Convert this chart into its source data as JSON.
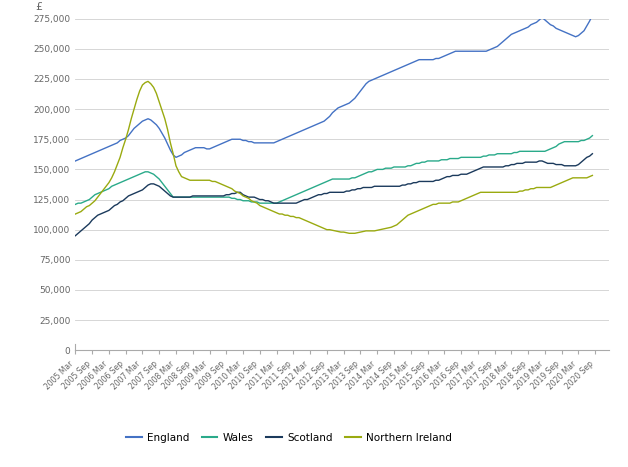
{
  "bg_color": "#ffffff",
  "grid_color": "#d0d0d0",
  "line_colors": {
    "England": "#4472c4",
    "Wales": "#2aaa8a",
    "Scotland": "#1b3a5c",
    "Northern Ireland": "#9aaa10"
  },
  "legend_labels": [
    "England",
    "Wales",
    "Scotland",
    "Northern Ireland"
  ],
  "ylim": [
    0,
    275000
  ],
  "yticks": [
    0,
    25000,
    50000,
    75000,
    100000,
    125000,
    150000,
    175000,
    200000,
    225000,
    250000,
    275000
  ],
  "x_tick_positions": [
    0,
    6,
    12,
    18,
    24,
    30,
    36,
    42,
    48,
    54,
    60,
    66,
    72,
    78,
    84,
    90,
    96,
    102,
    108,
    114,
    120,
    126,
    132,
    138,
    144,
    150,
    156,
    162,
    168,
    174,
    180,
    186
  ],
  "x_tick_labels": [
    "2005 Mar",
    "2005 Sep",
    "2006 Mar",
    "2006 Sep",
    "2007 Mar",
    "2007 Sep",
    "2008 Mar",
    "2008 Sep",
    "2009 Mar",
    "2009 Sep",
    "2010 Mar",
    "2010 Sep",
    "2011 Mar",
    "2011 Sep",
    "2012 Mar",
    "2012 Sep",
    "2013 Mar",
    "2013 Sep",
    "2014 Mar",
    "2014 Sep",
    "2015 Mar",
    "2015 Sep",
    "2016 Mar",
    "2016 Sep",
    "2017 Mar",
    "2017 Sep",
    "2018 Mar",
    "2018 Sep",
    "2019 Mar",
    "2019 Sep",
    "2020 Mar",
    "2020 Sep"
  ],
  "england_monthly": [
    157000,
    158000,
    159000,
    160000,
    161000,
    162000,
    163000,
    164000,
    165000,
    166000,
    167000,
    168000,
    169000,
    170000,
    171000,
    172000,
    174000,
    175000,
    176000,
    178000,
    181000,
    184000,
    186000,
    188000,
    190000,
    191000,
    192000,
    191000,
    189000,
    187000,
    184000,
    180000,
    176000,
    171000,
    166000,
    162000,
    160000,
    161000,
    162000,
    164000,
    165000,
    166000,
    167000,
    168000,
    168000,
    168000,
    168000,
    167000,
    167000,
    168000,
    169000,
    170000,
    171000,
    172000,
    173000,
    174000,
    175000,
    175000,
    175000,
    175000,
    174000,
    174000,
    173000,
    173000,
    172000,
    172000,
    172000,
    172000,
    172000,
    172000,
    172000,
    172000,
    173000,
    174000,
    175000,
    176000,
    177000,
    178000,
    179000,
    180000,
    181000,
    182000,
    183000,
    184000,
    185000,
    186000,
    187000,
    188000,
    189000,
    190000,
    192000,
    194000,
    197000,
    199000,
    201000,
    202000,
    203000,
    204000,
    205000,
    207000,
    209000,
    212000,
    215000,
    218000,
    221000,
    223000,
    224000,
    225000,
    226000,
    227000,
    228000,
    229000,
    230000,
    231000,
    232000,
    233000,
    234000,
    235000,
    236000,
    237000,
    238000,
    239000,
    240000,
    241000,
    241000,
    241000,
    241000,
    241000,
    241000,
    242000,
    242000,
    243000,
    244000,
    245000,
    246000,
    247000,
    248000,
    248000,
    248000,
    248000,
    248000,
    248000,
    248000,
    248000,
    248000,
    248000,
    248000,
    248000,
    249000,
    250000,
    251000,
    252000,
    254000,
    256000,
    258000,
    260000,
    262000,
    263000,
    264000,
    265000,
    266000,
    267000,
    268000,
    270000,
    271000,
    272000,
    274000,
    276000,
    274000,
    272000,
    270000,
    269000,
    267000,
    266000,
    265000,
    264000,
    263000,
    262000,
    261000,
    260000,
    261000,
    263000,
    265000,
    269000,
    273000,
    278000
  ],
  "wales_monthly": [
    121000,
    122000,
    122000,
    123000,
    124000,
    125000,
    127000,
    129000,
    130000,
    131000,
    132000,
    133000,
    134000,
    136000,
    137000,
    138000,
    139000,
    140000,
    141000,
    142000,
    143000,
    144000,
    145000,
    146000,
    147000,
    148000,
    148000,
    147000,
    146000,
    144000,
    142000,
    139000,
    136000,
    133000,
    130000,
    127000,
    127000,
    127000,
    127000,
    127000,
    127000,
    127000,
    127000,
    127000,
    127000,
    127000,
    127000,
    127000,
    127000,
    127000,
    127000,
    127000,
    127000,
    127000,
    127000,
    127000,
    126000,
    126000,
    125000,
    125000,
    124000,
    124000,
    124000,
    123000,
    123000,
    123000,
    122000,
    122000,
    122000,
    122000,
    122000,
    122000,
    122000,
    123000,
    124000,
    125000,
    126000,
    127000,
    128000,
    129000,
    130000,
    131000,
    132000,
    133000,
    134000,
    135000,
    136000,
    137000,
    138000,
    139000,
    140000,
    141000,
    142000,
    142000,
    142000,
    142000,
    142000,
    142000,
    142000,
    143000,
    143000,
    144000,
    145000,
    146000,
    147000,
    148000,
    148000,
    149000,
    150000,
    150000,
    150000,
    151000,
    151000,
    151000,
    152000,
    152000,
    152000,
    152000,
    152000,
    153000,
    153000,
    154000,
    155000,
    155000,
    156000,
    156000,
    157000,
    157000,
    157000,
    157000,
    157000,
    158000,
    158000,
    158000,
    159000,
    159000,
    159000,
    159000,
    160000,
    160000,
    160000,
    160000,
    160000,
    160000,
    160000,
    160000,
    161000,
    161000,
    162000,
    162000,
    162000,
    163000,
    163000,
    163000,
    163000,
    163000,
    163000,
    164000,
    164000,
    165000,
    165000,
    165000,
    165000,
    165000,
    165000,
    165000,
    165000,
    165000,
    165000,
    166000,
    167000,
    168000,
    169000,
    171000,
    172000,
    173000,
    173000,
    173000,
    173000,
    173000,
    173000,
    174000,
    174000,
    175000,
    176000,
    178000
  ],
  "scotland_monthly": [
    95000,
    97000,
    99000,
    101000,
    103000,
    105000,
    108000,
    110000,
    112000,
    113000,
    114000,
    115000,
    116000,
    118000,
    120000,
    121000,
    123000,
    124000,
    126000,
    128000,
    129000,
    130000,
    131000,
    132000,
    133000,
    135000,
    137000,
    138000,
    138000,
    137000,
    136000,
    134000,
    132000,
    130000,
    128000,
    127000,
    127000,
    127000,
    127000,
    127000,
    127000,
    127000,
    128000,
    128000,
    128000,
    128000,
    128000,
    128000,
    128000,
    128000,
    128000,
    128000,
    128000,
    128000,
    129000,
    129000,
    130000,
    130000,
    131000,
    131000,
    129000,
    128000,
    127000,
    127000,
    127000,
    126000,
    125000,
    125000,
    124000,
    124000,
    123000,
    122000,
    122000,
    122000,
    122000,
    122000,
    122000,
    122000,
    122000,
    122000,
    123000,
    124000,
    125000,
    125000,
    126000,
    127000,
    128000,
    129000,
    129000,
    130000,
    130000,
    131000,
    131000,
    131000,
    131000,
    131000,
    131000,
    132000,
    132000,
    133000,
    133000,
    134000,
    134000,
    135000,
    135000,
    135000,
    135000,
    136000,
    136000,
    136000,
    136000,
    136000,
    136000,
    136000,
    136000,
    136000,
    136000,
    137000,
    137000,
    138000,
    138000,
    139000,
    139000,
    140000,
    140000,
    140000,
    140000,
    140000,
    140000,
    141000,
    141000,
    142000,
    143000,
    144000,
    144000,
    145000,
    145000,
    145000,
    146000,
    146000,
    146000,
    147000,
    148000,
    149000,
    150000,
    151000,
    152000,
    152000,
    152000,
    152000,
    152000,
    152000,
    152000,
    152000,
    153000,
    153000,
    154000,
    154000,
    155000,
    155000,
    155000,
    156000,
    156000,
    156000,
    156000,
    156000,
    157000,
    157000,
    156000,
    155000,
    155000,
    155000,
    154000,
    154000,
    154000,
    153000,
    153000,
    153000,
    153000,
    153000,
    154000,
    156000,
    158000,
    160000,
    161000,
    163000
  ],
  "northern_ireland_monthly": [
    113000,
    114000,
    115000,
    117000,
    119000,
    120000,
    122000,
    124000,
    127000,
    130000,
    133000,
    136000,
    139000,
    143000,
    148000,
    154000,
    160000,
    168000,
    175000,
    183000,
    192000,
    200000,
    208000,
    215000,
    220000,
    222000,
    223000,
    221000,
    218000,
    213000,
    206000,
    199000,
    192000,
    183000,
    172000,
    163000,
    153000,
    148000,
    144000,
    143000,
    142000,
    141000,
    141000,
    141000,
    141000,
    141000,
    141000,
    141000,
    141000,
    140000,
    140000,
    139000,
    138000,
    137000,
    136000,
    135000,
    134000,
    132000,
    131000,
    130000,
    128000,
    127000,
    126000,
    124000,
    123000,
    122000,
    120000,
    119000,
    118000,
    117000,
    116000,
    115000,
    114000,
    113000,
    113000,
    112000,
    112000,
    111000,
    111000,
    110000,
    110000,
    109000,
    108000,
    107000,
    106000,
    105000,
    104000,
    103000,
    102000,
    101000,
    100000,
    100000,
    99500,
    99000,
    98500,
    98000,
    98000,
    97500,
    97000,
    97000,
    97000,
    97500,
    98000,
    98500,
    99000,
    99000,
    99000,
    99000,
    99500,
    100000,
    100500,
    101000,
    101500,
    102000,
    103000,
    104000,
    106000,
    108000,
    110000,
    112000,
    113000,
    114000,
    115000,
    116000,
    117000,
    118000,
    119000,
    120000,
    121000,
    121000,
    122000,
    122000,
    122000,
    122000,
    122000,
    123000,
    123000,
    123000,
    124000,
    125000,
    126000,
    127000,
    128000,
    129000,
    130000,
    131000,
    131000,
    131000,
    131000,
    131000,
    131000,
    131000,
    131000,
    131000,
    131000,
    131000,
    131000,
    131000,
    131000,
    132000,
    132000,
    133000,
    133000,
    134000,
    134000,
    135000,
    135000,
    135000,
    135000,
    135000,
    135000,
    136000,
    137000,
    138000,
    139000,
    140000,
    141000,
    142000,
    143000,
    143000,
    143000,
    143000,
    143000,
    143000,
    144000,
    145000
  ]
}
